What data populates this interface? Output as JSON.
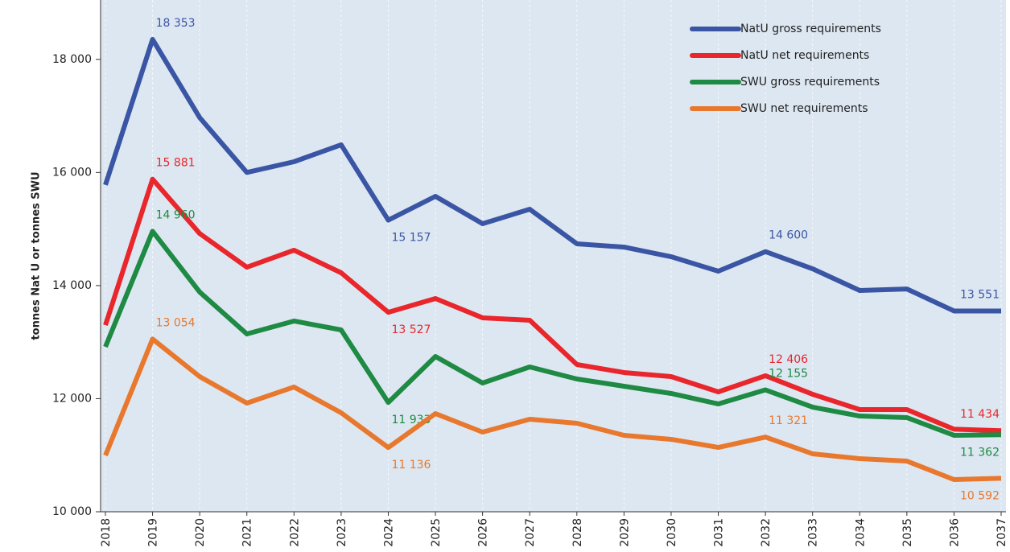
{
  "chart_data": {
    "type": "line",
    "y_label": "tonnes Nat U or tonnes SWU",
    "categories": [
      "2018",
      "2019",
      "2020",
      "2021",
      "2022",
      "2023",
      "2024",
      "2025",
      "2026",
      "2027",
      "2028",
      "2029",
      "2030",
      "2031",
      "2032",
      "2033",
      "2034",
      "2035",
      "2036",
      "2037"
    ],
    "ylim": [
      10000,
      19050
    ],
    "yticks": [
      {
        "value": 10000,
        "label": "10 000"
      },
      {
        "value": 12000,
        "label": "12 000"
      },
      {
        "value": 14000,
        "label": "14 000"
      },
      {
        "value": 16000,
        "label": "16 000"
      },
      {
        "value": 18000,
        "label": "18 000"
      }
    ],
    "legend": "top-right",
    "series": [
      {
        "name": "NatU gross requirements",
        "color": "#3a55a4",
        "values": [
          15780,
          18353,
          16970,
          16000,
          16190,
          16490,
          15157,
          15578,
          15094,
          15350,
          14739,
          14680,
          14510,
          14255,
          14600,
          14297,
          13913,
          13940,
          13551,
          13551
        ],
        "value_labels": [
          null,
          "18 353",
          null,
          null,
          null,
          null,
          "15 157",
          null,
          null,
          null,
          null,
          null,
          null,
          null,
          "14 600",
          null,
          null,
          null,
          null,
          "13 551"
        ]
      },
      {
        "name": "NatU net requirements",
        "color": "#e8262b",
        "values": [
          13300,
          15881,
          14920,
          14325,
          14625,
          14226,
          13527,
          13771,
          13430,
          13387,
          12604,
          12462,
          12390,
          12120,
          12406,
          12078,
          11807,
          11807,
          11460,
          11434
        ],
        "value_labels": [
          null,
          "15 881",
          null,
          null,
          null,
          null,
          "13 527",
          null,
          null,
          null,
          null,
          null,
          null,
          null,
          "12 406",
          null,
          null,
          null,
          null,
          "11 434"
        ]
      },
      {
        "name": "SWU gross requirements",
        "color": "#1e8a43",
        "values": [
          12917,
          14960,
          13885,
          13145,
          13373,
          13216,
          11933,
          12746,
          12277,
          12561,
          12348,
          12220,
          12092,
          11907,
          12155,
          11850,
          11693,
          11665,
          11352,
          11362
        ],
        "value_labels": [
          null,
          "14 960",
          null,
          null,
          null,
          null,
          "11 933",
          null,
          null,
          null,
          null,
          null,
          null,
          null,
          "12 155",
          null,
          null,
          null,
          null,
          "11 362"
        ]
      },
      {
        "name": "SWU net requirements",
        "color": "#e8782e",
        "values": [
          10996,
          13054,
          12390,
          11921,
          12206,
          11750,
          11136,
          11736,
          11409,
          11636,
          11565,
          11352,
          11281,
          11138,
          11321,
          11025,
          10939,
          10896,
          10569,
          10592
        ],
        "value_labels": [
          null,
          "13 054",
          null,
          null,
          null,
          null,
          "11 136",
          null,
          null,
          null,
          null,
          null,
          null,
          null,
          "11 321",
          null,
          null,
          null,
          null,
          "10 592"
        ]
      }
    ]
  }
}
